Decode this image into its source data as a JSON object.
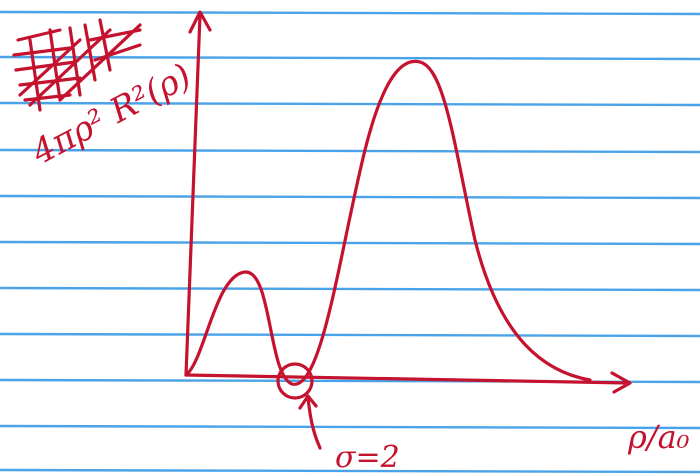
{
  "y_axis": {
    "label": "4πρ² R²(ρ)"
  },
  "x_axis": {
    "label": "ρ/a₀"
  },
  "annotation": {
    "label": "σ=2"
  }
}
